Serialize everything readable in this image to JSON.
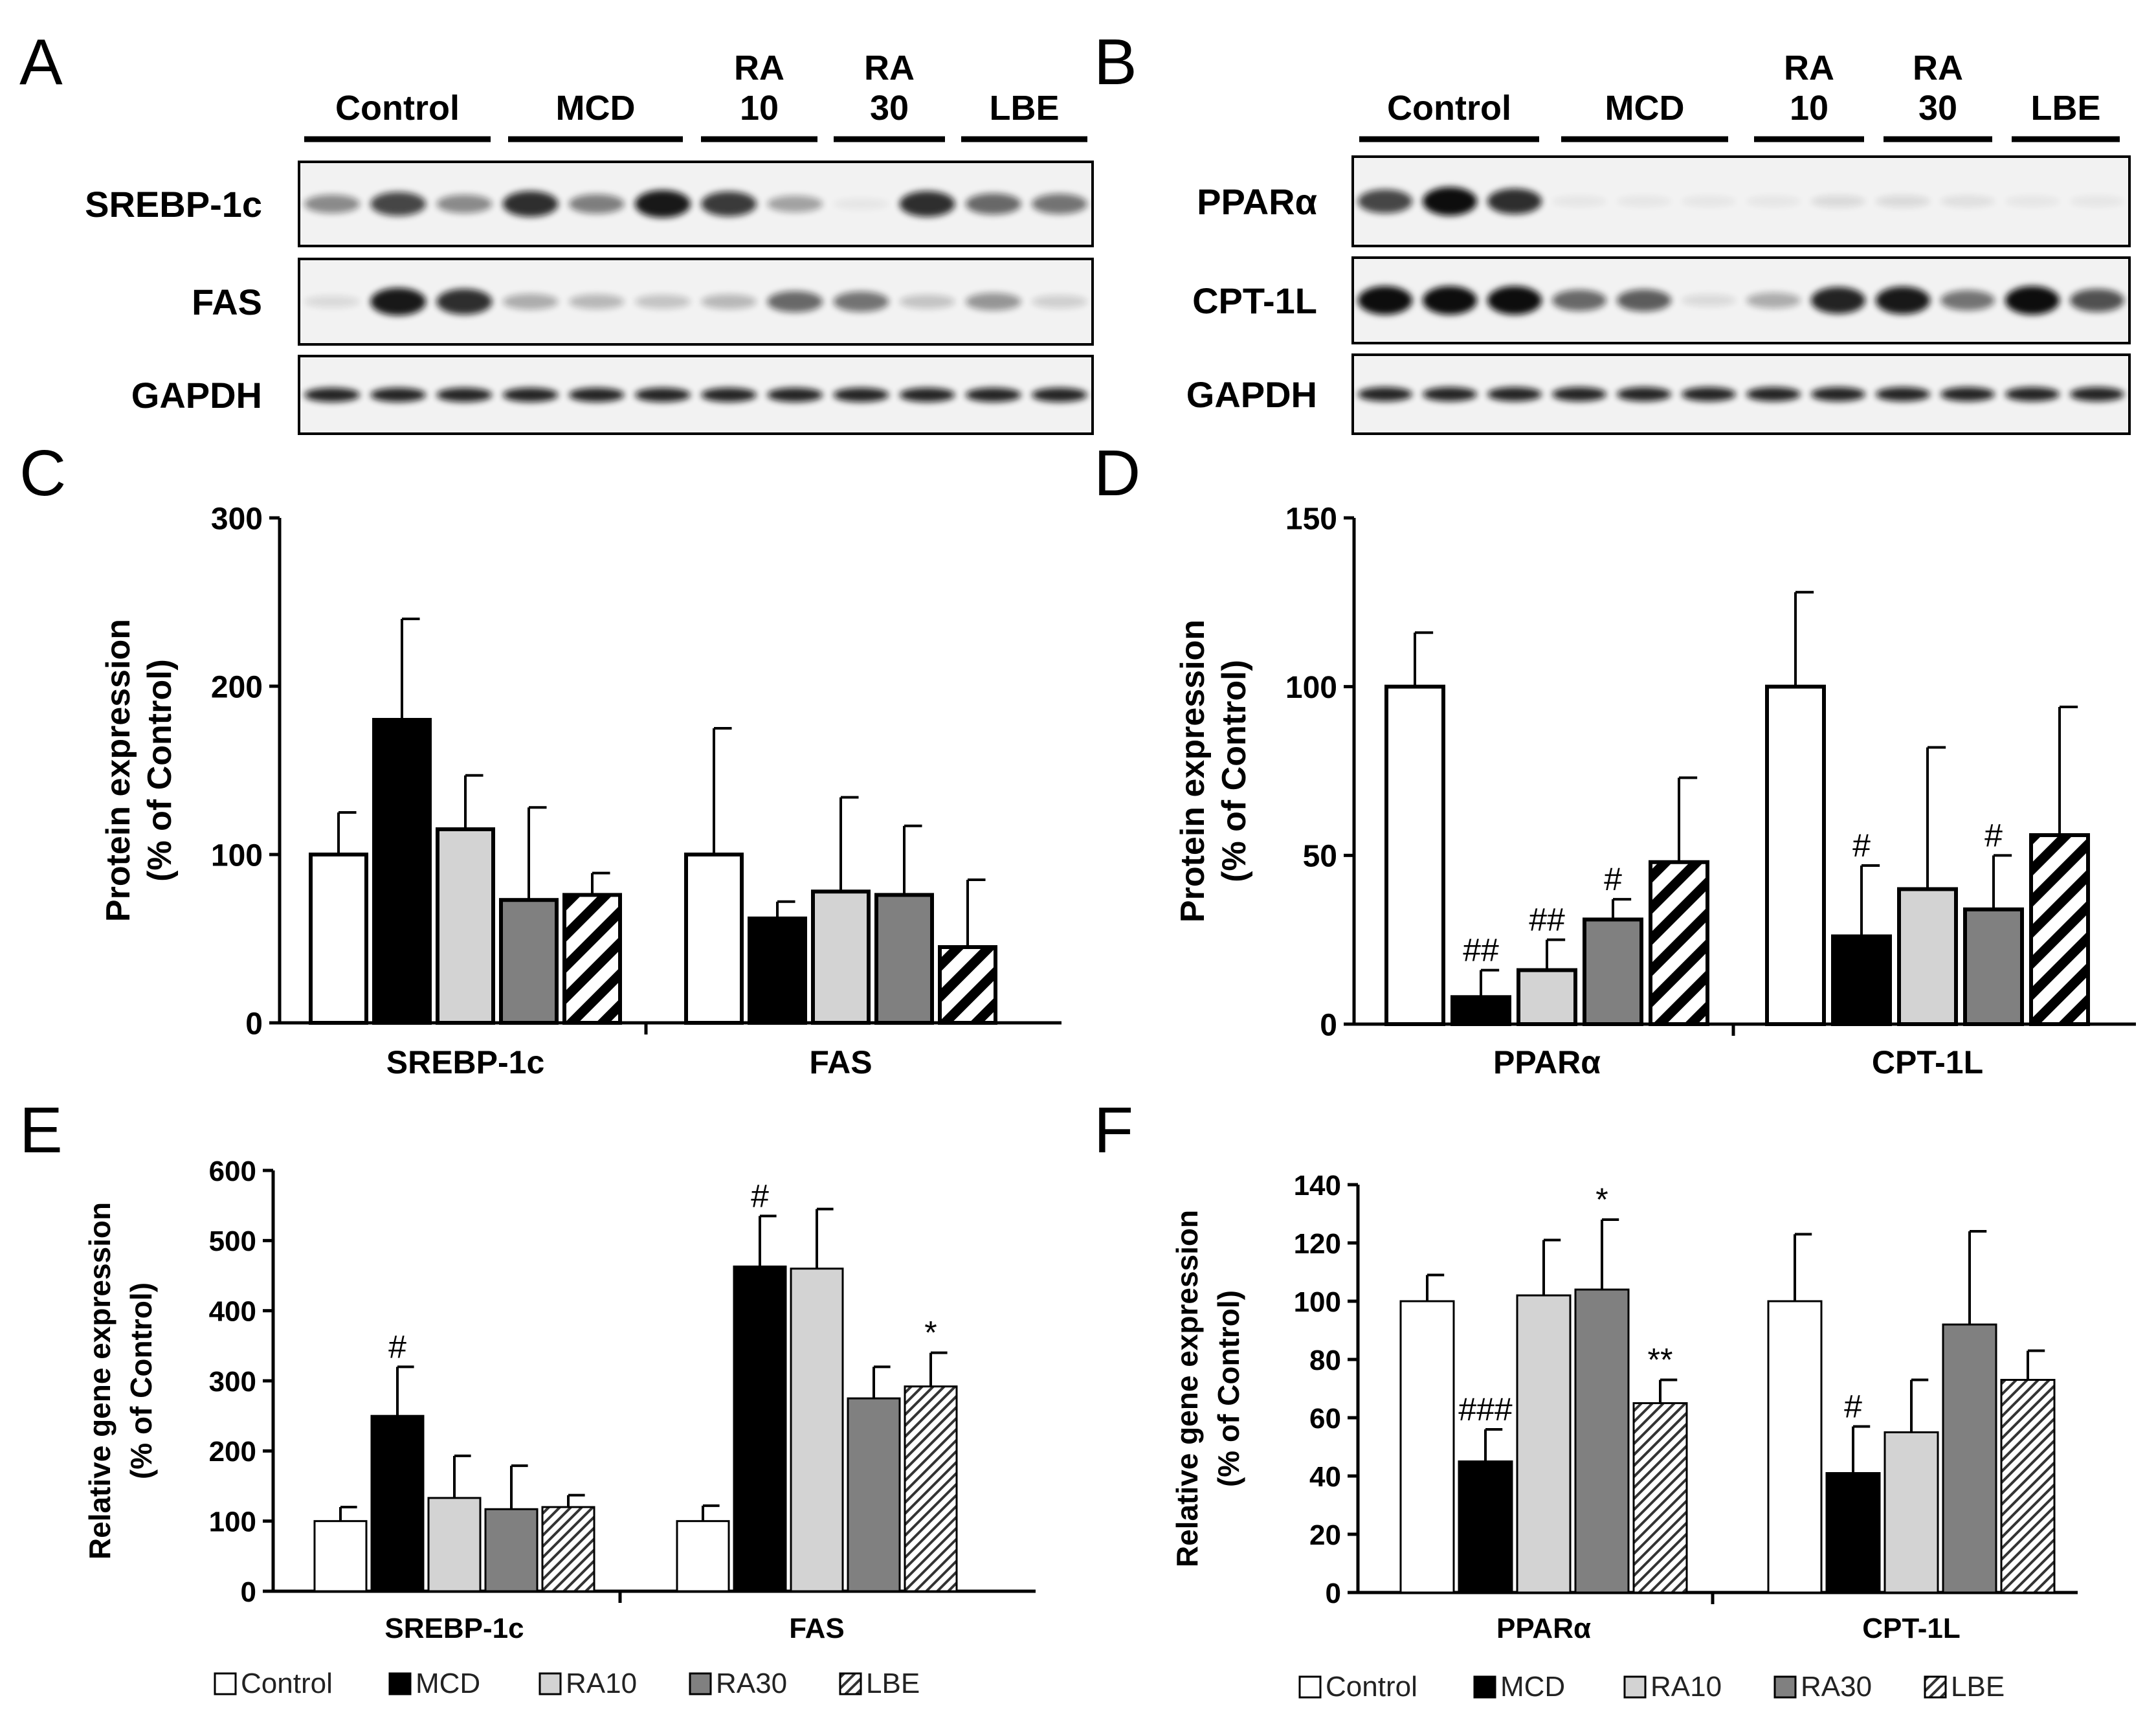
{
  "panel_letters": {
    "A": "A",
    "B": "B",
    "C": "C",
    "D": "D",
    "E": "E",
    "F": "F"
  },
  "colors": {
    "control": "#ffffff",
    "mcd": "#000000",
    "ra10": "#d3d3d3",
    "ra30": "#808080",
    "lbe_stroke": "#000000",
    "membrane": "#f2f2f2",
    "band": "#111111"
  },
  "blots": {
    "A": {
      "groups": [
        {
          "label": "Control",
          "lines": [
            "Control"
          ]
        },
        {
          "label": "MCD",
          "lines": [
            "MCD"
          ]
        },
        {
          "label": "RA 10",
          "lines": [
            "RA",
            "10"
          ]
        },
        {
          "label": "RA 30",
          "lines": [
            "RA",
            "30"
          ]
        },
        {
          "label": "LBE",
          "lines": [
            "LBE"
          ]
        }
      ],
      "rows": [
        {
          "label": "SREBP-1c",
          "bands": [
            0.45,
            0.75,
            0.45,
            0.85,
            0.5,
            0.95,
            0.8,
            0.35,
            0.05,
            0.85,
            0.6,
            0.55
          ]
        },
        {
          "label": "FAS",
          "bands": [
            0.1,
            0.95,
            0.85,
            0.3,
            0.25,
            0.2,
            0.25,
            0.6,
            0.55,
            0.2,
            0.4,
            0.15
          ]
        },
        {
          "label": "GAPDH",
          "bands": [
            0.9,
            0.9,
            0.9,
            0.9,
            0.9,
            0.9,
            0.9,
            0.9,
            0.9,
            0.9,
            0.9,
            0.9
          ]
        }
      ]
    },
    "B": {
      "groups": [
        {
          "label": "Control",
          "lines": [
            "Control"
          ]
        },
        {
          "label": "MCD",
          "lines": [
            "MCD"
          ]
        },
        {
          "label": "RA 10",
          "lines": [
            "RA",
            "10"
          ]
        },
        {
          "label": "RA 30",
          "lines": [
            "RA",
            "30"
          ]
        },
        {
          "label": "LBE",
          "lines": [
            "LBE"
          ]
        }
      ],
      "rows": [
        {
          "label": "PPARα",
          "bands": [
            0.75,
            1.0,
            0.85,
            0.05,
            0.05,
            0.05,
            0.05,
            0.1,
            0.1,
            0.08,
            0.05,
            0.05
          ]
        },
        {
          "label": "CPT-1L",
          "bands": [
            1.0,
            1.0,
            1.0,
            0.6,
            0.65,
            0.1,
            0.3,
            0.9,
            0.95,
            0.55,
            1.0,
            0.7
          ]
        },
        {
          "label": "GAPDH",
          "bands": [
            0.9,
            0.9,
            0.9,
            0.9,
            0.9,
            0.9,
            0.9,
            0.9,
            0.9,
            0.9,
            0.9,
            0.9
          ]
        }
      ]
    }
  },
  "chart_data": [
    {
      "id": "C",
      "type": "bar",
      "title": "",
      "ylabel_lines": [
        "Protein expression",
        "(% of Control)"
      ],
      "ylim": [
        0,
        300
      ],
      "yticks": [
        "0",
        "100",
        "200",
        "300"
      ],
      "ytick_values": [
        0,
        100,
        200,
        300
      ],
      "categories": [
        "SREBP-1c",
        "FAS"
      ],
      "series": [
        {
          "name": "Control",
          "values": [
            100,
            100
          ],
          "errors": [
            25,
            75
          ],
          "sig": [
            "",
            ""
          ]
        },
        {
          "name": "MCD",
          "values": [
            180,
            62
          ],
          "errors": [
            60,
            10
          ],
          "sig": [
            "",
            ""
          ]
        },
        {
          "name": "RA10",
          "values": [
            115,
            78
          ],
          "errors": [
            32,
            56
          ],
          "sig": [
            "",
            ""
          ]
        },
        {
          "name": "RA30",
          "values": [
            73,
            76
          ],
          "errors": [
            55,
            41
          ],
          "sig": [
            "",
            ""
          ]
        },
        {
          "name": "LBE",
          "values": [
            76,
            45
          ],
          "errors": [
            13,
            40
          ],
          "sig": [
            "",
            ""
          ]
        }
      ],
      "legend": []
    },
    {
      "id": "D",
      "type": "bar",
      "title": "",
      "ylabel_lines": [
        "Protein expression",
        "(% of Control)"
      ],
      "ylim": [
        0,
        150
      ],
      "yticks": [
        "0",
        "50",
        "100",
        "150"
      ],
      "ytick_values": [
        0,
        50,
        100,
        150
      ],
      "categories": [
        "PPARα",
        "CPT-1L"
      ],
      "series": [
        {
          "name": "Control",
          "values": [
            100,
            100
          ],
          "errors": [
            16,
            28
          ],
          "sig": [
            "",
            ""
          ]
        },
        {
          "name": "MCD",
          "values": [
            8,
            26
          ],
          "errors": [
            8,
            21
          ],
          "sig": [
            "##",
            "#"
          ]
        },
        {
          "name": "RA10",
          "values": [
            16,
            40
          ],
          "errors": [
            9,
            42
          ],
          "sig": [
            "##",
            ""
          ]
        },
        {
          "name": "RA30",
          "values": [
            31,
            34
          ],
          "errors": [
            6,
            16
          ],
          "sig": [
            "#",
            "#"
          ]
        },
        {
          "name": "LBE",
          "values": [
            48,
            56
          ],
          "errors": [
            25,
            38
          ],
          "sig": [
            "",
            ""
          ]
        }
      ],
      "legend": []
    },
    {
      "id": "E",
      "type": "bar",
      "title": "",
      "ylabel_lines": [
        "Relative gene expression",
        "(% of Control)"
      ],
      "ylim": [
        0,
        600
      ],
      "yticks": [
        "0",
        "100",
        "200",
        "300",
        "400",
        "500",
        "600"
      ],
      "ytick_values": [
        0,
        100,
        200,
        300,
        400,
        500,
        600
      ],
      "categories": [
        "SREBP-1c",
        "FAS"
      ],
      "series": [
        {
          "name": "Control",
          "values": [
            100,
            100
          ],
          "errors": [
            20,
            22
          ],
          "sig": [
            "",
            ""
          ]
        },
        {
          "name": "MCD",
          "values": [
            250,
            463
          ],
          "errors": [
            70,
            72
          ],
          "sig": [
            "#",
            "#"
          ]
        },
        {
          "name": "RA10",
          "values": [
            133,
            460
          ],
          "errors": [
            60,
            85
          ],
          "sig": [
            "",
            ""
          ]
        },
        {
          "name": "RA30",
          "values": [
            117,
            275
          ],
          "errors": [
            62,
            45
          ],
          "sig": [
            "",
            ""
          ]
        },
        {
          "name": "LBE",
          "values": [
            120,
            292
          ],
          "errors": [
            17,
            48
          ],
          "sig": [
            "",
            "*"
          ]
        }
      ],
      "legend": [
        "Control",
        "MCD",
        "RA10",
        "RA30",
        "LBE"
      ]
    },
    {
      "id": "F",
      "type": "bar",
      "title": "",
      "ylabel_lines": [
        "Relative gene expression",
        "(% of Control)"
      ],
      "ylim": [
        0,
        140
      ],
      "yticks": [
        "0",
        "20",
        "40",
        "60",
        "80",
        "100",
        "120",
        "140"
      ],
      "ytick_values": [
        0,
        20,
        40,
        60,
        80,
        100,
        120,
        140
      ],
      "categories": [
        "PPARα",
        "CPT-1L"
      ],
      "series": [
        {
          "name": "Control",
          "values": [
            100,
            100
          ],
          "errors": [
            9,
            23
          ],
          "sig": [
            "",
            ""
          ]
        },
        {
          "name": "MCD",
          "values": [
            45,
            41
          ],
          "errors": [
            11,
            16
          ],
          "sig": [
            "###",
            "#"
          ]
        },
        {
          "name": "RA10",
          "values": [
            102,
            55
          ],
          "errors": [
            19,
            18
          ],
          "sig": [
            "",
            ""
          ]
        },
        {
          "name": "RA30",
          "values": [
            104,
            92
          ],
          "errors": [
            24,
            32
          ],
          "sig": [
            "*",
            ""
          ]
        },
        {
          "name": "LBE",
          "values": [
            65,
            73
          ],
          "errors": [
            8,
            10
          ],
          "sig": [
            "**",
            ""
          ]
        }
      ],
      "legend": [
        "Control",
        "MCD",
        "RA10",
        "RA30",
        "LBE"
      ]
    }
  ]
}
